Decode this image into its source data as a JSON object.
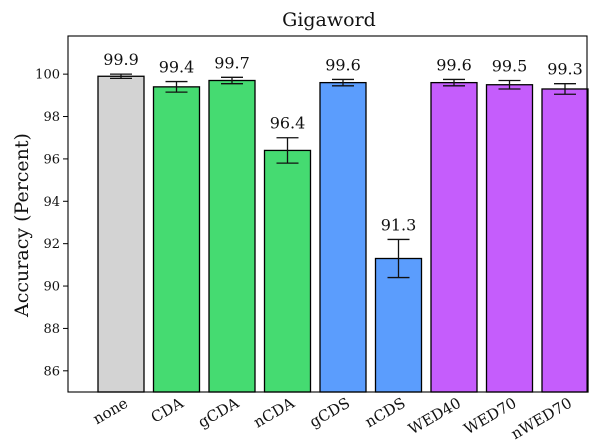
{
  "chart_data": {
    "type": "bar",
    "title": "Gigaword",
    "xlabel": "",
    "ylabel": "Accuracy (Percent)",
    "ylim": [
      85,
      101.8
    ],
    "yticks": [
      86,
      88,
      90,
      92,
      94,
      96,
      98,
      100
    ],
    "grid": false,
    "legend": "none",
    "categories": [
      "none",
      "CDA",
      "gCDA",
      "nCDA",
      "gCDS",
      "nCDS",
      "WED40",
      "WED70",
      "nWED70"
    ],
    "values": [
      99.9,
      99.4,
      99.7,
      96.4,
      99.6,
      91.3,
      99.6,
      99.5,
      99.3
    ],
    "value_labels": [
      "99.9",
      "99.4",
      "99.7",
      "96.4",
      "99.6",
      "91.3",
      "99.6",
      "99.5",
      "99.3"
    ],
    "errors": [
      0.1,
      0.25,
      0.15,
      0.6,
      0.15,
      0.9,
      0.15,
      0.2,
      0.25
    ],
    "colors": [
      "#d3d3d3",
      "#45db71",
      "#45db71",
      "#45db71",
      "#5b9dfd",
      "#5b9dfd",
      "#c55dfc",
      "#c55dfc",
      "#c55dfc"
    ]
  }
}
